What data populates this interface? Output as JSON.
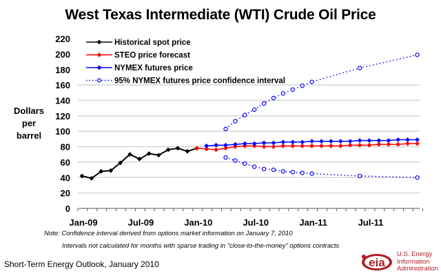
{
  "chart_data": {
    "type": "line",
    "title": "West Texas Intermediate (WTI) Crude Oil Price",
    "xlabel": "",
    "ylabel": "Dollars per barrel",
    "ylabel_lines": [
      "Dollars",
      "per",
      "barrel"
    ],
    "ylim": [
      0,
      220
    ],
    "yticks": [
      "0",
      "20",
      "40",
      "60",
      "80",
      "100",
      "120",
      "140",
      "160",
      "180",
      "200",
      "220"
    ],
    "ytick_values": [
      0,
      20,
      40,
      60,
      80,
      100,
      120,
      140,
      160,
      180,
      200,
      220
    ],
    "x_months": [
      "Jan-09",
      "Feb-09",
      "Mar-09",
      "Apr-09",
      "May-09",
      "Jun-09",
      "Jul-09",
      "Aug-09",
      "Sep-09",
      "Oct-09",
      "Nov-09",
      "Dec-09",
      "Jan-10",
      "Feb-10",
      "Mar-10",
      "Apr-10",
      "May-10",
      "Jun-10",
      "Jul-10",
      "Aug-10",
      "Sep-10",
      "Oct-10",
      "Nov-10",
      "Dec-10",
      "Jan-11",
      "Feb-11",
      "Mar-11",
      "Apr-11",
      "May-11",
      "Jun-11",
      "Jul-11",
      "Aug-11",
      "Sep-11",
      "Oct-11",
      "Nov-11",
      "Dec-11"
    ],
    "xtick_labels": [
      {
        "label": "Jan-09",
        "index": 0
      },
      {
        "label": "Jul-09",
        "index": 6
      },
      {
        "label": "Jan-10",
        "index": 12
      },
      {
        "label": "Jul-10",
        "index": 18
      },
      {
        "label": "Jan-11",
        "index": 24
      },
      {
        "label": "Jul-11",
        "index": 30
      }
    ],
    "grid": "horizontal, 20 to 160 only",
    "legend_placement": "top-left",
    "series": [
      {
        "name": "Historical spot price",
        "color": "#000000",
        "style": "solid",
        "marker": "filled-diamond",
        "start_index": 0,
        "values": [
          42,
          39,
          48,
          49,
          59,
          70,
          64,
          71,
          69,
          76,
          78,
          74,
          78
        ]
      },
      {
        "name": "STEO price forecast",
        "color": "#ff0000",
        "style": "solid",
        "marker": "filled-diamond",
        "start_index": 12,
        "values": [
          78,
          77,
          76,
          78,
          80,
          81,
          81,
          80,
          80,
          81,
          81,
          81,
          81,
          81,
          81,
          81,
          82,
          82,
          82,
          83,
          83,
          83,
          84,
          84
        ]
      },
      {
        "name": "NYMEX futures price",
        "color": "#0000ff",
        "style": "solid",
        "marker": "filled-diamond",
        "start_index": 13,
        "values": [
          81,
          82,
          82,
          83,
          84,
          84,
          85,
          85,
          86,
          86,
          86,
          87,
          87,
          87,
          87,
          87,
          88,
          88,
          88,
          88,
          89,
          89,
          89
        ]
      },
      {
        "name": "95% NYMEX futures price confidence interval",
        "color": "#0000ff",
        "style": "dotted",
        "marker": "open-circle",
        "upper": {
          "points": [
            [
              15,
              103
            ],
            [
              16,
              113
            ],
            [
              17,
              121
            ],
            [
              18,
              128
            ],
            [
              19,
              136
            ],
            [
              20,
              143
            ],
            [
              21,
              149
            ],
            [
              22,
              154
            ],
            [
              23,
              159
            ],
            [
              24,
              164
            ],
            [
              29,
              182
            ],
            [
              35,
              199
            ]
          ]
        },
        "lower": {
          "points": [
            [
              15,
              66
            ],
            [
              16,
              62
            ],
            [
              17,
              58
            ],
            [
              18,
              54
            ],
            [
              19,
              51
            ],
            [
              20,
              50
            ],
            [
              21,
              48
            ],
            [
              22,
              47
            ],
            [
              23,
              46
            ],
            [
              24,
              45
            ],
            [
              29,
              42
            ],
            [
              35,
              40
            ]
          ]
        }
      }
    ]
  },
  "notes": {
    "note1": "Note: Confidence interval derived from options market information on January 7, 2010",
    "note2": "Intervals not calculated for months with sparse trading in \"close-to-the-money\" options contracts"
  },
  "source": "Short-Term Energy Outlook, January 2010",
  "logo": {
    "mark": "eia",
    "lines": [
      "U.S. Energy",
      "Information",
      "Administration"
    ],
    "color": "#b01e23"
  }
}
